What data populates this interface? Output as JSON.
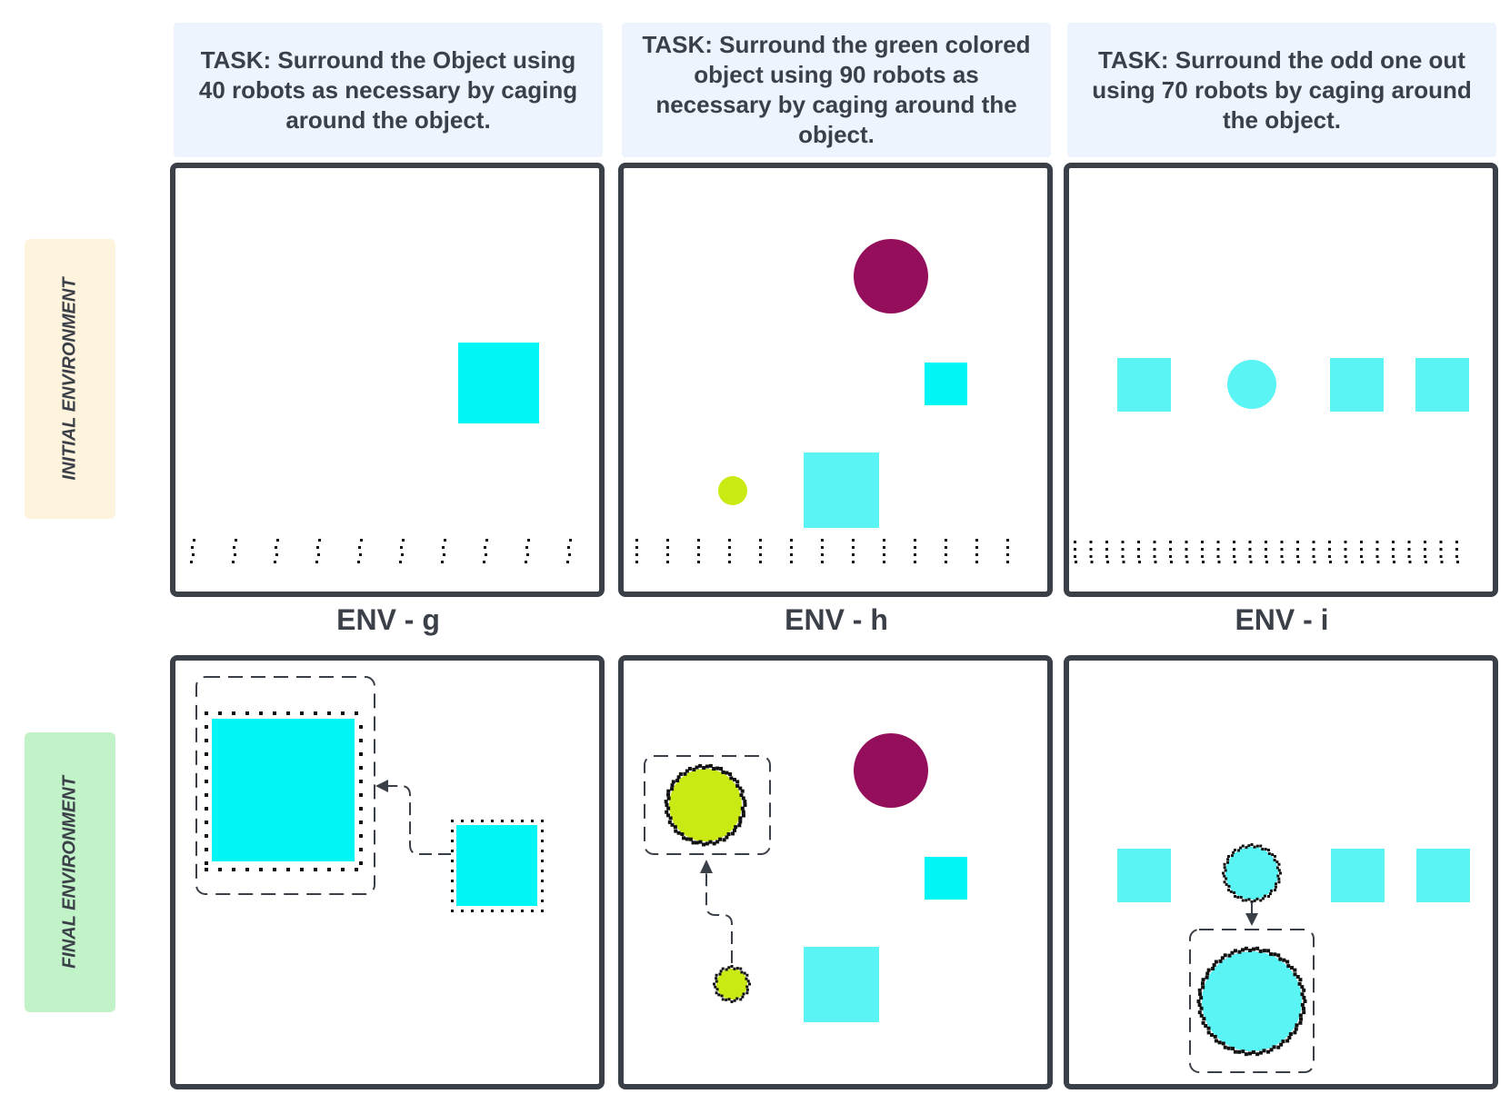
{
  "tasks": [
    "TASK: Surround the Object using 40 robots as necessary by caging around the object.",
    "TASK: Surround the green colored object using 90 robots as necessary by caging around the object.",
    "TASK: Surround the odd one out using 70 robots by caging around the object."
  ],
  "row_labels": {
    "initial": "INITIAL ENVIRONMENT",
    "final": "FINAL ENVIRONMENT"
  },
  "env_labels": [
    "ENV - g",
    "ENV - h",
    "ENV - i"
  ],
  "colors": {
    "border": "#3b4048",
    "task_bg": "#edf4fd",
    "initial_label_bg": "#fef3dc",
    "final_label_bg": "#c2f2c8",
    "cyan": "#00f5f5",
    "light_cyan": "#5af4f4",
    "maroon": "#950e5b",
    "lime": "#cbea14",
    "robot": "#111111"
  }
}
